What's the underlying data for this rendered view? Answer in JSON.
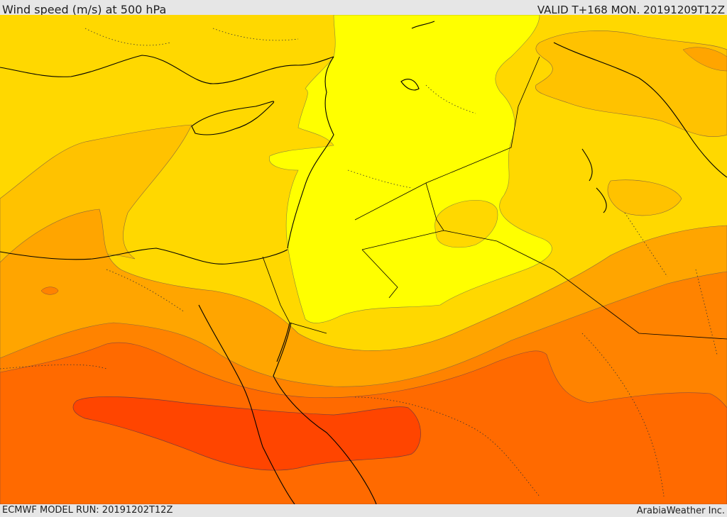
{
  "header": {
    "title": "Wind speed (m/s) at 500 hPa",
    "valid": "VALID T+168 MON. 20191209T12Z"
  },
  "footer": {
    "model_run": "ECMWF MODEL RUN: 20191202T12Z",
    "credit": "ArabiaWeather Inc."
  },
  "map": {
    "variable": "wind speed",
    "level": "500 hPa",
    "units": "m/s",
    "colors": {
      "lightest": "#ffff00",
      "light": "#ffd800",
      "mid": "#ffb400",
      "orange": "#ff9400",
      "dark_orange": "#ff6a00",
      "darkest": "#ff4500"
    }
  }
}
